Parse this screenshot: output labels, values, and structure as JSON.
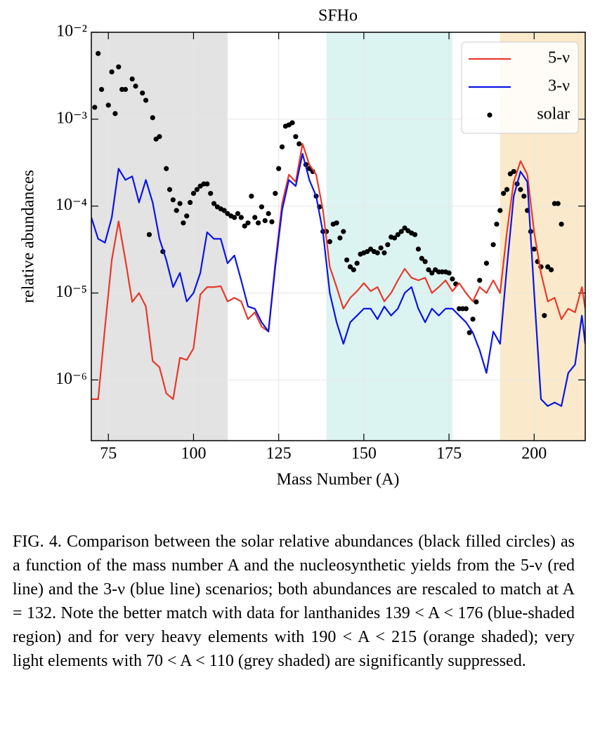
{
  "chart_data": {
    "type": "line",
    "title": "SFHo",
    "xlabel": "Mass Number (A)",
    "ylabel": "relative abundances",
    "xlim": [
      70,
      215
    ],
    "xticks": [
      75,
      100,
      125,
      150,
      175,
      200
    ],
    "ylim": [
      2e-07,
      0.01
    ],
    "yscale": "log",
    "yticks": [
      {
        "value": 0.01,
        "label": "10⁻²"
      },
      {
        "value": 0.001,
        "label": "10⁻³"
      },
      {
        "value": 0.0001,
        "label": "10⁻⁴"
      },
      {
        "value": 1e-05,
        "label": "10⁻⁵"
      },
      {
        "value": 1e-06,
        "label": "10⁻⁶"
      }
    ],
    "grid": true,
    "legend": "upper right",
    "shaded_regions": [
      {
        "x0": 70,
        "x1": 110,
        "color": "#e3e3e3"
      },
      {
        "x0": 139,
        "x1": 176,
        "color": "#dcf4f1"
      },
      {
        "x0": 190,
        "x1": 215,
        "color": "#faeacb"
      }
    ],
    "series": [
      {
        "name": "5-ν",
        "kind": "line",
        "color": "#e8392b",
        "x": [
          70,
          72,
          74,
          76,
          78,
          80,
          82,
          84,
          86,
          88,
          90,
          92,
          94,
          96,
          98,
          100,
          102,
          104,
          106,
          108,
          110,
          112,
          114,
          116,
          118,
          120,
          122,
          124,
          126,
          128,
          130,
          132,
          134,
          136,
          138,
          140,
          142,
          144,
          146,
          148,
          150,
          152,
          154,
          156,
          158,
          160,
          162,
          164,
          166,
          168,
          170,
          172,
          174,
          176,
          178,
          180,
          182,
          184,
          186,
          188,
          190,
          192,
          194,
          196,
          198,
          200,
          202,
          204,
          206,
          208,
          210,
          212,
          214,
          215
        ],
        "values": [
          6e-07,
          6e-07,
          4e-06,
          2.4e-05,
          6.7e-05,
          2.4e-05,
          7.9e-06,
          1e-05,
          7e-06,
          1.65e-06,
          1.4e-06,
          7e-07,
          6e-07,
          1.8e-06,
          1.7e-06,
          2.3e-06,
          9.6e-06,
          1.17e-05,
          1.17e-05,
          1.2e-05,
          8e-06,
          8.8e-06,
          8e-06,
          5e-06,
          6e-06,
          4.1e-06,
          3.6e-06,
          2.2e-05,
          0.000107,
          0.00023,
          0.00019,
          0.00052,
          0.0003,
          0.00023,
          9e-05,
          2e-05,
          1.17e-05,
          6.6e-06,
          8.8e-06,
          1.05e-05,
          1.3e-05,
          1.05e-05,
          1.17e-05,
          8e-06,
          1e-05,
          1.4e-05,
          1.9e-05,
          1.5e-05,
          1.4e-05,
          1.5e-05,
          1e-05,
          1.17e-05,
          1.4e-05,
          1.05e-05,
          1.3e-05,
          1e-05,
          8e-06,
          1.17e-05,
          1e-05,
          1.4e-05,
          1e-05,
          5e-05,
          0.00019,
          0.00033,
          0.00023,
          5e-05,
          1.7e-05,
          8e-06,
          8.8e-06,
          5e-06,
          6.6e-06,
          6e-06,
          1.17e-05,
          6.6e-06
        ]
      },
      {
        "name": "3-ν",
        "kind": "line",
        "color": "#0a14e6",
        "x": [
          70,
          72,
          74,
          76,
          78,
          80,
          82,
          84,
          86,
          88,
          90,
          92,
          94,
          96,
          98,
          100,
          102,
          104,
          106,
          108,
          110,
          112,
          114,
          116,
          118,
          120,
          122,
          124,
          126,
          128,
          130,
          132,
          134,
          136,
          138,
          140,
          142,
          144,
          146,
          148,
          150,
          152,
          154,
          156,
          158,
          160,
          162,
          164,
          166,
          168,
          170,
          172,
          174,
          176,
          178,
          180,
          182,
          184,
          186,
          188,
          190,
          192,
          194,
          196,
          198,
          200,
          202,
          204,
          206,
          208,
          210,
          212,
          214,
          215
        ],
        "values": [
          7.4e-05,
          4.2e-05,
          3.8e-05,
          7.4e-05,
          0.00027,
          0.0002,
          0.00022,
          0.00011,
          0.0002,
          0.00011,
          4.2e-05,
          2.4e-05,
          1.17e-05,
          1.7e-05,
          8e-06,
          1e-05,
          1.7e-05,
          5e-05,
          4.2e-05,
          4.2e-05,
          2.2e-05,
          2.7e-05,
          1.4e-05,
          7e-06,
          6.6e-06,
          4.6e-06,
          3.6e-06,
          2e-05,
          9e-05,
          0.0002,
          0.00017,
          0.0004,
          0.0002,
          0.00013,
          5e-05,
          1e-05,
          4.6e-06,
          2.6e-06,
          4.6e-06,
          5.5e-06,
          6.6e-06,
          6.6e-06,
          5e-06,
          7e-06,
          5.5e-06,
          6.6e-06,
          1e-05,
          1.17e-05,
          6.6e-06,
          4.6e-06,
          6.6e-06,
          5.5e-06,
          6.6e-06,
          6.6e-06,
          5.5e-06,
          4.6e-06,
          3.5e-06,
          2.2e-06,
          1.2e-06,
          3.6e-06,
          2.6e-06,
          2e-05,
          0.00013,
          0.00025,
          0.00019,
          1e-05,
          6e-07,
          5e-07,
          5.5e-07,
          5e-07,
          1.2e-06,
          1.5e-06,
          5.5e-06,
          2.6e-06
        ]
      },
      {
        "name": "solar",
        "kind": "scatter",
        "color": "#000000",
        "x": [
          71,
          72,
          73,
          75,
          76,
          77,
          78,
          79,
          80,
          82,
          83,
          85,
          86,
          87,
          88,
          89,
          90,
          91,
          92,
          93,
          94,
          95,
          96,
          97,
          98,
          99,
          100,
          101,
          102,
          103,
          104,
          105,
          106,
          107,
          108,
          109,
          110,
          111,
          112,
          113,
          114,
          115,
          116,
          117,
          118,
          119,
          120,
          121,
          122,
          123,
          124,
          125,
          126,
          127,
          128,
          129,
          130,
          131,
          133,
          134,
          135,
          136,
          137,
          138,
          139,
          140,
          141,
          142,
          143,
          144,
          145,
          146,
          147,
          148,
          149,
          150,
          151,
          152,
          153,
          154,
          155,
          156,
          157,
          158,
          159,
          160,
          161,
          162,
          163,
          164,
          165,
          166,
          167,
          168,
          169,
          170,
          171,
          172,
          173,
          174,
          175,
          176,
          177,
          178,
          179,
          180,
          181,
          182,
          183,
          184,
          186,
          188,
          189,
          190,
          191,
          192,
          193,
          194,
          195,
          196,
          197,
          198,
          199,
          200,
          201,
          202,
          203,
          204,
          205,
          206,
          207,
          208
        ],
        "values": [
          0.00137,
          0.0057,
          0.0022,
          0.00145,
          0.0035,
          0.00116,
          0.004,
          0.0022,
          0.0022,
          0.0029,
          0.0024,
          0.002,
          0.00165,
          4.7e-05,
          0.00104,
          0.00059,
          0.00063,
          3e-05,
          0.00027,
          0.000155,
          0.000118,
          8.9e-05,
          0.000107,
          6.4e-05,
          7.7e-05,
          0.00011,
          0.00014,
          0.000155,
          0.00017,
          0.00018,
          0.00018,
          0.00014,
          0.000107,
          9.8e-05,
          9.3e-05,
          8.9e-05,
          8.2e-05,
          7.7e-05,
          7.4e-05,
          8.2e-05,
          7.4e-05,
          5.9e-05,
          6.4e-05,
          0.00013,
          7.4e-05,
          6.4e-05,
          9.8e-05,
          6.8e-05,
          8.2e-05,
          6.6e-05,
          0.00014,
          0.00027,
          0.00048,
          0.00083,
          0.00086,
          0.00091,
          0.00063,
          0.00052,
          0.0003,
          0.00027,
          0.00025,
          0.00013,
          9.8e-05,
          5.1e-05,
          5.1e-05,
          3.9e-05,
          6.2e-05,
          6.4e-05,
          4.3e-05,
          5.1e-05,
          2.4e-05,
          2e-05,
          1.85e-05,
          2.2e-05,
          2.8e-05,
          2.9e-05,
          3e-05,
          3.2e-05,
          3e-05,
          2.9e-05,
          3.3e-05,
          2.9e-05,
          3.6e-05,
          4.4e-05,
          4.3e-05,
          4.7e-05,
          5.1e-05,
          5.6e-05,
          5.2e-05,
          4.9e-05,
          4.7e-05,
          3.2e-05,
          2.5e-05,
          2.3e-05,
          1.85e-05,
          1.7e-05,
          1.85e-05,
          1.75e-05,
          1.75e-05,
          1.75e-05,
          1.7e-05,
          1.45e-05,
          1.27e-05,
          6.6e-06,
          6.6e-06,
          6.6e-06,
          3.5e-06,
          5e-06,
          7.9e-06,
          1.4e-05,
          2.2e-05,
          3.6e-05,
          6.2e-05,
          8.9e-05,
          0.00014,
          0.000155,
          0.000235,
          0.00025,
          0.00018,
          0.000155,
          0.00013,
          8.9e-05,
          5.1e-05,
          3.2e-05,
          2.3e-05,
          2e-05,
          5.5e-06,
          2e-05,
          1.85e-05,
          0.000107,
          0.000107,
          6.2e-05
        ]
      }
    ],
    "caption": "FIG. 4.  Comparison between the solar relative abundances (black filled circles) as a function of the mass number A and the nucleosynthetic yields from the 5-ν (red line) and the 3-ν (blue line) scenarios; both abundances are rescaled to match at A = 132. Note the better match with data for lanthanides 139 < A < 176 (blue-shaded region) and for very heavy elements with 190 < A < 215 (orange shaded); very light elements with 70 < A < 110 (grey shaded) are significantly suppressed."
  }
}
